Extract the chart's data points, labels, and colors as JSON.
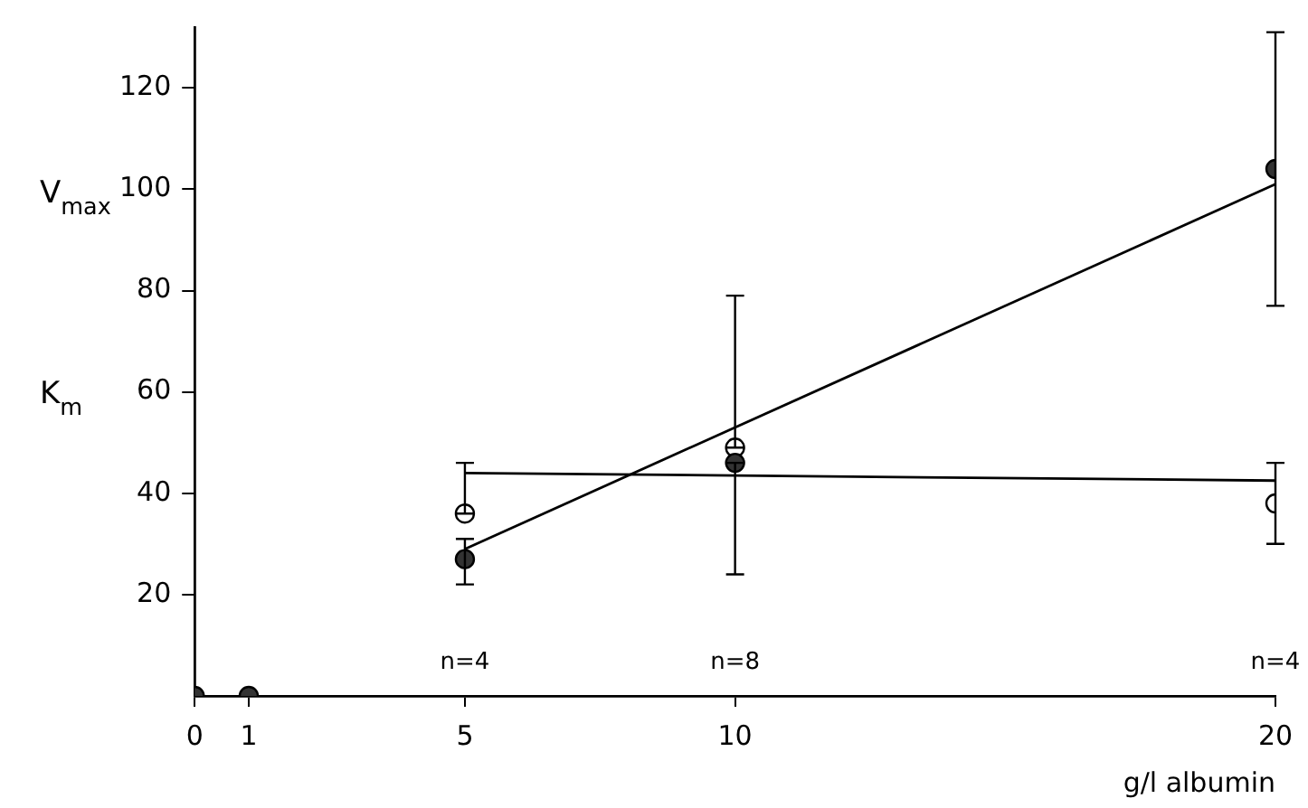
{
  "chart_data": {
    "type": "scatter",
    "xlabel": "g/l albumin",
    "xlim": [
      0,
      20
    ],
    "xticks": [
      0,
      1,
      5,
      10,
      20
    ],
    "ylim": [
      0,
      132
    ],
    "yticks": [
      20,
      40,
      60,
      80,
      100,
      120
    ],
    "grid": false,
    "legend": false,
    "marker": "circle",
    "annotations": [
      "V$_{max}$",
      "K$_{m}$",
      "n=4",
      "n=8",
      "n=4"
    ],
    "series": [
      {
        "color": "#333333",
        "x": [
          0,
          1,
          5,
          10,
          20
        ],
        "values": [
          0,
          0,
          27,
          46,
          104
        ],
        "errors": [
          null,
          null,
          [
            22,
            31
          ],
          [
            24,
            46
          ],
          [
            77,
            131
          ]
        ]
      },
      {
        "color": "#ffffff",
        "x": [
          5,
          10,
          20
        ],
        "values": [
          36,
          49,
          38
        ],
        "errors": [
          [
            36,
            46
          ],
          [
            49,
            79
          ],
          [
            30,
            46
          ]
        ]
      },
      {
        "type": "line",
        "color": "#000000",
        "x": [
          5,
          20
        ],
        "values": [
          29,
          101
        ],
        "marker": "none",
        "line_style": "solid"
      },
      {
        "type": "line",
        "color": "#000000",
        "x": [
          5,
          20
        ],
        "values": [
          44,
          42.5
        ],
        "marker": "none",
        "line_style": "solid"
      }
    ]
  }
}
